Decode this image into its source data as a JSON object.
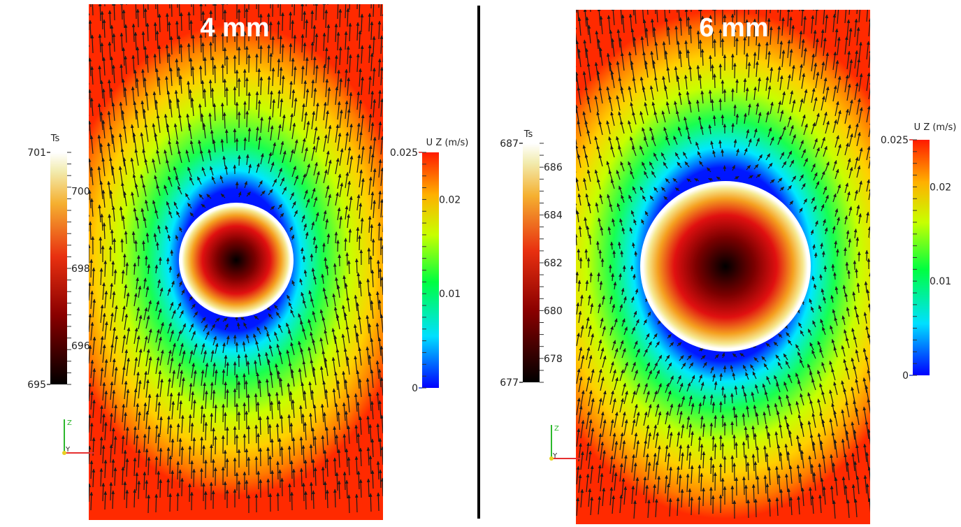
{
  "panels": [
    {
      "title": "4 mm",
      "temp_colorbar": {
        "title": "Ts",
        "min": 695,
        "max": 701,
        "labels": [
          "701",
          "700",
          "698",
          "696",
          "695"
        ]
      },
      "velocity_colorbar": {
        "title": "U Z (m/s)",
        "min": 0,
        "max": 0.025,
        "labels": [
          "0.025",
          "0.02",
          "0.01",
          "0"
        ]
      },
      "axes_triad": {
        "z": "Z",
        "y": "Y"
      }
    },
    {
      "title": "6 mm",
      "temp_colorbar": {
        "title": "Ts",
        "min": 677,
        "max": 687,
        "labels": [
          "687",
          "686",
          "684",
          "682",
          "680",
          "678",
          "677"
        ]
      },
      "velocity_colorbar": {
        "title": "U Z (m/s)",
        "min": 0,
        "max": 0.025,
        "labels": [
          "0.025",
          "0.02",
          "0.01",
          "0"
        ]
      },
      "axes_triad": {
        "z": "Z",
        "y": "Y"
      }
    }
  ],
  "colors": {
    "arrow": "#1a1a1a",
    "divider": "#000000",
    "triad_z": "#2db82d",
    "triad_y": "#e63030"
  }
}
